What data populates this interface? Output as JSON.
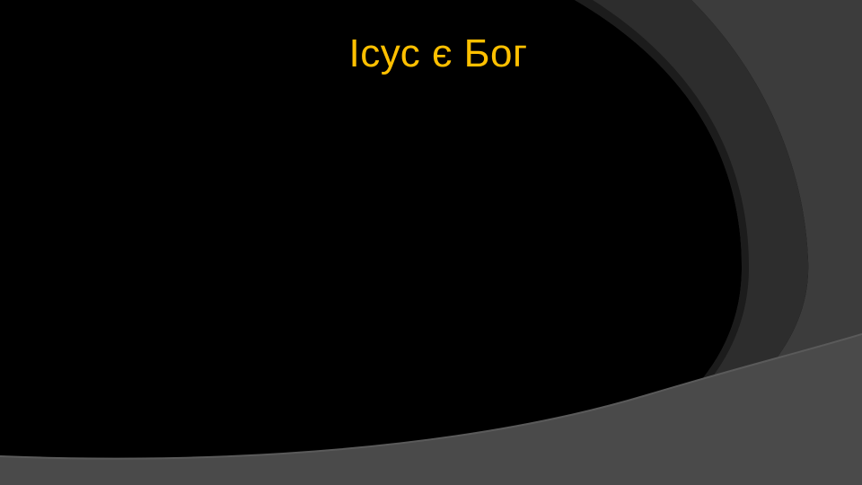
{
  "slide": {
    "title": "Ісус є Бог"
  },
  "colors": {
    "background": "#000000",
    "title": "#FFC000",
    "swoosh_dark": "#232323",
    "swoosh_mid": "#2f2f2f",
    "swoosh_light": "#3c3c3c",
    "swoosh_bottom": "#4a4a4a"
  }
}
